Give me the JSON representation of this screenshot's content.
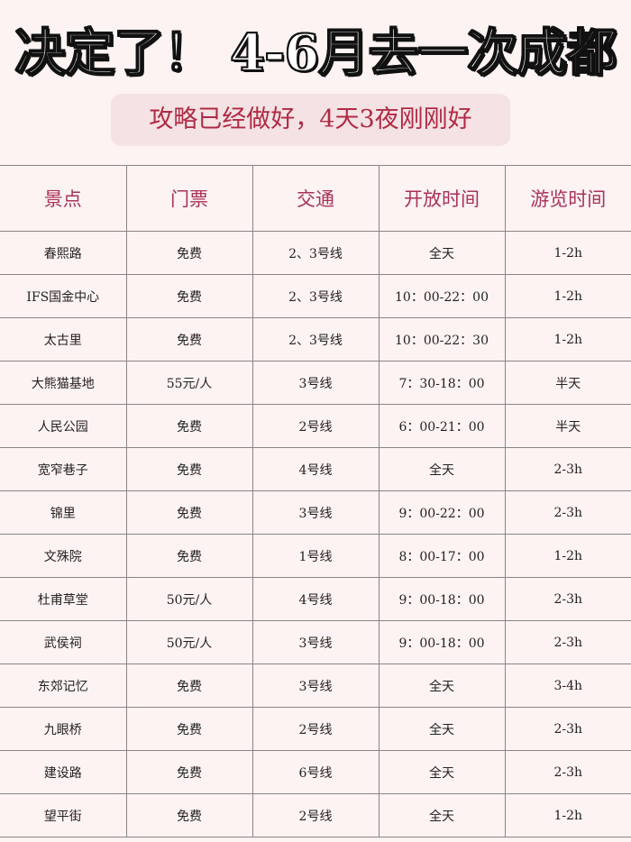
{
  "title": "决定了！ 4-6月去一次成都",
  "subtitle": "攻略已经做好，4天3夜刚刚好",
  "colors": {
    "background": "#fdf3f2",
    "accent": "#b02a44",
    "header_text": "#a8325a"
  },
  "table": {
    "headers": [
      "景点",
      "门票",
      "交通",
      "开放时间",
      "游览时间"
    ],
    "rows": [
      [
        "春熙路",
        "免费",
        "2、3号线",
        "全天",
        "1-2h"
      ],
      [
        "IFS国金中心",
        "免费",
        "2、3号线",
        "10：00-22：00",
        "1-2h"
      ],
      [
        "太古里",
        "免费",
        "2、3号线",
        "10：00-22：30",
        "1-2h"
      ],
      [
        "大熊猫基地",
        "55元/人",
        "3号线",
        "7：30-18：00",
        "半天"
      ],
      [
        "人民公园",
        "免费",
        "2号线",
        "6：00-21：00",
        "半天"
      ],
      [
        "宽窄巷子",
        "免费",
        "4号线",
        "全天",
        "2-3h"
      ],
      [
        "锦里",
        "免费",
        "3号线",
        "9：00-22：00",
        "2-3h"
      ],
      [
        "文殊院",
        "免费",
        "1号线",
        "8：00-17：00",
        "1-2h"
      ],
      [
        "杜甫草堂",
        "50元/人",
        "4号线",
        "9：00-18：00",
        "2-3h"
      ],
      [
        "武侯祠",
        "50元/人",
        "3号线",
        "9：00-18：00",
        "2-3h"
      ],
      [
        "东郊记忆",
        "免费",
        "3号线",
        "全天",
        "3-4h"
      ],
      [
        "九眼桥",
        "免费",
        "2号线",
        "全天",
        "2-3h"
      ],
      [
        "建设路",
        "免费",
        "6号线",
        "全天",
        "2-3h"
      ],
      [
        "望平街",
        "免费",
        "2号线",
        "全天",
        "1-2h"
      ]
    ]
  }
}
